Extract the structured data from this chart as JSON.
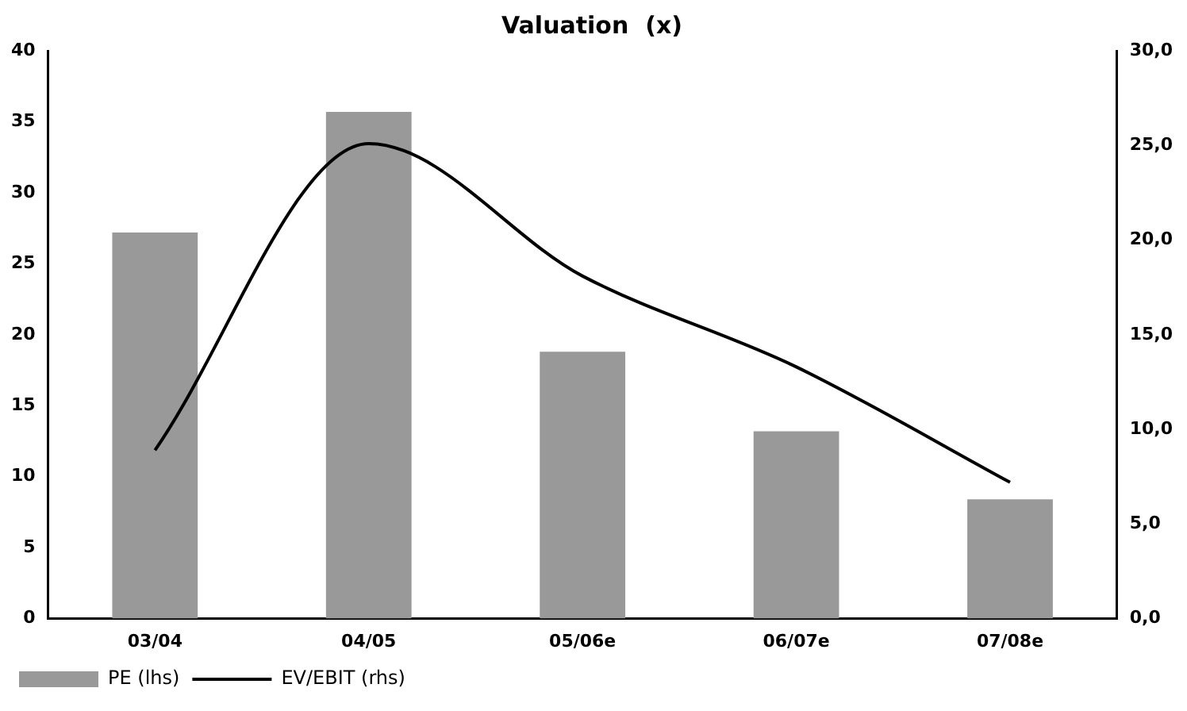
{
  "chart_data": {
    "type": "bar",
    "title": "Valuation  (x)",
    "categories": [
      "03/04",
      "04/05",
      "05/06e",
      "06/07e",
      "07/08e"
    ],
    "series": [
      {
        "name": "PE (lhs)",
        "color": "#999999",
        "values": [
          27.2,
          35.7,
          18.8,
          13.2,
          8.4
        ]
      },
      {
        "name": "EV/EBIT (rhs)",
        "type": "line",
        "axis": "y2",
        "color": "#000000",
        "values": [
          8.9,
          25.1,
          18.1,
          13.3,
          7.2
        ]
      }
    ],
    "ylim": [
      0,
      40
    ],
    "yticks": [
      0,
      5,
      10,
      15,
      20,
      25,
      30,
      35,
      40
    ],
    "y2lim": [
      0,
      30
    ],
    "y2ticks": [
      {
        "value": 0,
        "label": "0,0"
      },
      {
        "value": 5,
        "label": "5,0"
      },
      {
        "value": 10,
        "label": "10,0"
      },
      {
        "value": 15,
        "label": "15,0"
      },
      {
        "value": 20,
        "label": "20,0"
      },
      {
        "value": 25,
        "label": "25,0"
      },
      {
        "value": 30,
        "label": "30,0"
      }
    ],
    "grid": false,
    "legend": "bottom left",
    "marker": "none",
    "line_style": "solid"
  }
}
